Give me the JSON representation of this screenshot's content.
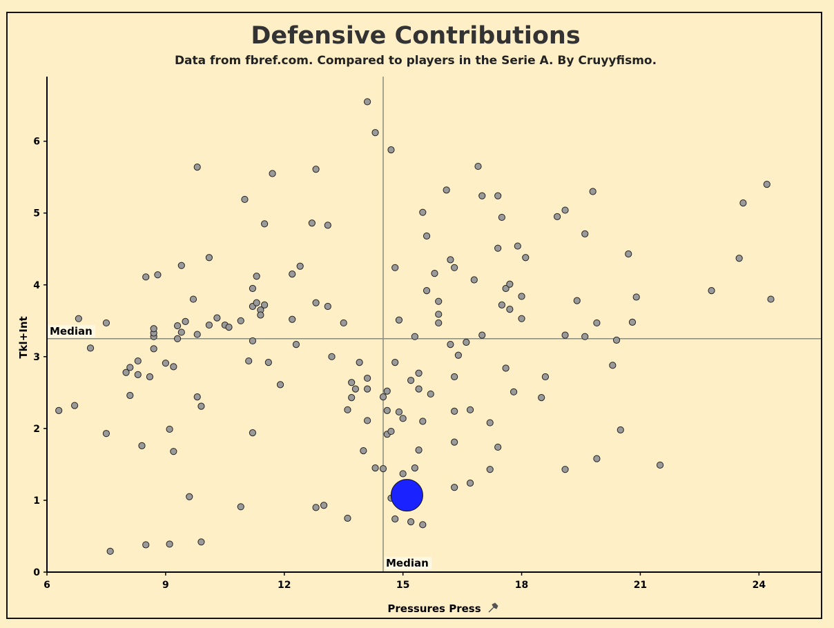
{
  "chart_data": {
    "type": "scatter",
    "title": "Defensive Contributions",
    "subtitle": "Data from fbref.com. Compared to players in the Serie A. By Cruyyfismo.",
    "xlabel": "Pressures Press",
    "ylabel": "Tkl+Int",
    "xlim": [
      6,
      25.6
    ],
    "ylim": [
      0,
      6.9
    ],
    "xticks": [
      6,
      9,
      12,
      15,
      18,
      21,
      24
    ],
    "yticks": [
      0,
      1,
      2,
      3,
      4,
      5,
      6
    ],
    "grid": false,
    "median_x": 14.5,
    "median_y": 3.25,
    "median_label": "Median",
    "point_color": "#9a9a9a",
    "highlight_color": "#1a22ff",
    "highlight": {
      "x": 15.1,
      "y": 1.07
    },
    "points": [
      [
        6.3,
        2.25
      ],
      [
        6.7,
        2.32
      ],
      [
        6.8,
        3.53
      ],
      [
        7.1,
        3.12
      ],
      [
        7.5,
        3.47
      ],
      [
        7.5,
        1.93
      ],
      [
        7.6,
        0.29
      ],
      [
        8.0,
        2.78
      ],
      [
        8.1,
        2.85
      ],
      [
        8.1,
        2.46
      ],
      [
        8.3,
        2.94
      ],
      [
        8.3,
        2.75
      ],
      [
        8.4,
        1.76
      ],
      [
        8.5,
        4.11
      ],
      [
        8.6,
        2.72
      ],
      [
        8.7,
        3.11
      ],
      [
        8.7,
        3.28
      ],
      [
        8.7,
        3.33
      ],
      [
        8.7,
        3.39
      ],
      [
        8.8,
        4.14
      ],
      [
        8.5,
        0.38
      ],
      [
        9.0,
        2.91
      ],
      [
        9.1,
        1.99
      ],
      [
        9.1,
        0.39
      ],
      [
        9.2,
        2.86
      ],
      [
        9.2,
        1.68
      ],
      [
        9.3,
        3.43
      ],
      [
        9.3,
        3.25
      ],
      [
        9.4,
        3.34
      ],
      [
        9.4,
        4.27
      ],
      [
        9.5,
        3.49
      ],
      [
        9.6,
        1.05
      ],
      [
        9.7,
        3.8
      ],
      [
        9.8,
        5.64
      ],
      [
        9.8,
        3.31
      ],
      [
        9.8,
        2.44
      ],
      [
        9.9,
        2.31
      ],
      [
        9.9,
        0.42
      ],
      [
        10.1,
        4.38
      ],
      [
        10.1,
        3.44
      ],
      [
        10.3,
        3.54
      ],
      [
        10.5,
        3.44
      ],
      [
        10.6,
        3.41
      ],
      [
        10.9,
        3.5
      ],
      [
        10.9,
        0.91
      ],
      [
        11.0,
        5.19
      ],
      [
        11.1,
        2.94
      ],
      [
        11.2,
        3.22
      ],
      [
        11.2,
        3.7
      ],
      [
        11.2,
        3.95
      ],
      [
        11.2,
        1.94
      ],
      [
        11.3,
        4.12
      ],
      [
        11.3,
        3.75
      ],
      [
        11.4,
        3.65
      ],
      [
        11.4,
        3.58
      ],
      [
        11.5,
        4.85
      ],
      [
        11.5,
        3.72
      ],
      [
        11.6,
        2.92
      ],
      [
        11.7,
        5.55
      ],
      [
        11.9,
        2.61
      ],
      [
        12.2,
        4.15
      ],
      [
        12.2,
        3.52
      ],
      [
        12.3,
        3.17
      ],
      [
        12.4,
        4.26
      ],
      [
        12.7,
        4.86
      ],
      [
        12.8,
        5.61
      ],
      [
        12.8,
        3.75
      ],
      [
        12.8,
        0.9
      ],
      [
        13.0,
        0.93
      ],
      [
        13.1,
        4.83
      ],
      [
        13.1,
        3.7
      ],
      [
        13.2,
        3.0
      ],
      [
        13.5,
        3.47
      ],
      [
        13.6,
        2.26
      ],
      [
        13.6,
        0.75
      ],
      [
        13.7,
        2.64
      ],
      [
        13.7,
        2.43
      ],
      [
        13.8,
        2.55
      ],
      [
        13.9,
        2.92
      ],
      [
        14.0,
        1.69
      ],
      [
        14.1,
        6.55
      ],
      [
        14.1,
        2.7
      ],
      [
        14.1,
        2.55
      ],
      [
        14.1,
        2.11
      ],
      [
        14.3,
        6.12
      ],
      [
        14.3,
        1.45
      ],
      [
        14.5,
        2.44
      ],
      [
        14.5,
        1.44
      ],
      [
        14.6,
        2.52
      ],
      [
        14.6,
        2.25
      ],
      [
        14.6,
        1.92
      ],
      [
        14.7,
        5.88
      ],
      [
        14.7,
        1.96
      ],
      [
        14.7,
        1.03
      ],
      [
        14.8,
        4.24
      ],
      [
        14.8,
        2.92
      ],
      [
        14.8,
        0.74
      ],
      [
        14.9,
        3.51
      ],
      [
        14.9,
        2.23
      ],
      [
        15.0,
        2.14
      ],
      [
        15.0,
        1.37
      ],
      [
        15.2,
        2.67
      ],
      [
        15.2,
        0.7
      ],
      [
        15.3,
        3.28
      ],
      [
        15.3,
        1.45
      ],
      [
        15.4,
        2.77
      ],
      [
        15.4,
        2.55
      ],
      [
        15.4,
        1.7
      ],
      [
        15.5,
        5.01
      ],
      [
        15.5,
        2.1
      ],
      [
        15.5,
        0.66
      ],
      [
        15.6,
        4.68
      ],
      [
        15.6,
        3.92
      ],
      [
        15.7,
        2.48
      ],
      [
        15.8,
        4.16
      ],
      [
        15.9,
        3.77
      ],
      [
        15.9,
        3.59
      ],
      [
        15.9,
        3.47
      ],
      [
        16.1,
        5.32
      ],
      [
        16.2,
        4.35
      ],
      [
        16.2,
        3.17
      ],
      [
        16.3,
        4.24
      ],
      [
        16.3,
        2.72
      ],
      [
        16.3,
        2.24
      ],
      [
        16.3,
        1.81
      ],
      [
        16.3,
        1.18
      ],
      [
        16.4,
        3.02
      ],
      [
        16.6,
        3.2
      ],
      [
        16.7,
        2.26
      ],
      [
        16.7,
        1.24
      ],
      [
        16.8,
        4.07
      ],
      [
        16.9,
        5.65
      ],
      [
        17.0,
        5.24
      ],
      [
        17.0,
        3.3
      ],
      [
        17.2,
        2.08
      ],
      [
        17.2,
        1.43
      ],
      [
        17.4,
        5.24
      ],
      [
        17.4,
        4.51
      ],
      [
        17.4,
        1.74
      ],
      [
        17.5,
        4.94
      ],
      [
        17.5,
        3.72
      ],
      [
        17.6,
        3.95
      ],
      [
        17.6,
        2.84
      ],
      [
        17.7,
        4.01
      ],
      [
        17.7,
        3.66
      ],
      [
        17.8,
        2.51
      ],
      [
        17.9,
        4.54
      ],
      [
        18.0,
        3.84
      ],
      [
        18.0,
        3.53
      ],
      [
        18.1,
        4.38
      ],
      [
        18.5,
        2.43
      ],
      [
        18.6,
        2.72
      ],
      [
        18.9,
        4.95
      ],
      [
        19.1,
        5.04
      ],
      [
        19.1,
        3.3
      ],
      [
        19.1,
        1.43
      ],
      [
        19.4,
        3.78
      ],
      [
        19.6,
        4.71
      ],
      [
        19.6,
        3.28
      ],
      [
        19.8,
        5.3
      ],
      [
        19.9,
        3.47
      ],
      [
        19.9,
        1.58
      ],
      [
        20.4,
        3.23
      ],
      [
        20.3,
        2.88
      ],
      [
        20.5,
        1.98
      ],
      [
        20.7,
        4.43
      ],
      [
        20.8,
        3.48
      ],
      [
        20.9,
        3.83
      ],
      [
        21.5,
        1.49
      ],
      [
        22.8,
        3.92
      ],
      [
        23.5,
        4.37
      ],
      [
        23.6,
        5.14
      ],
      [
        24.2,
        5.4
      ],
      [
        24.3,
        3.8
      ]
    ]
  },
  "icons": {
    "pin": "pin-icon"
  }
}
